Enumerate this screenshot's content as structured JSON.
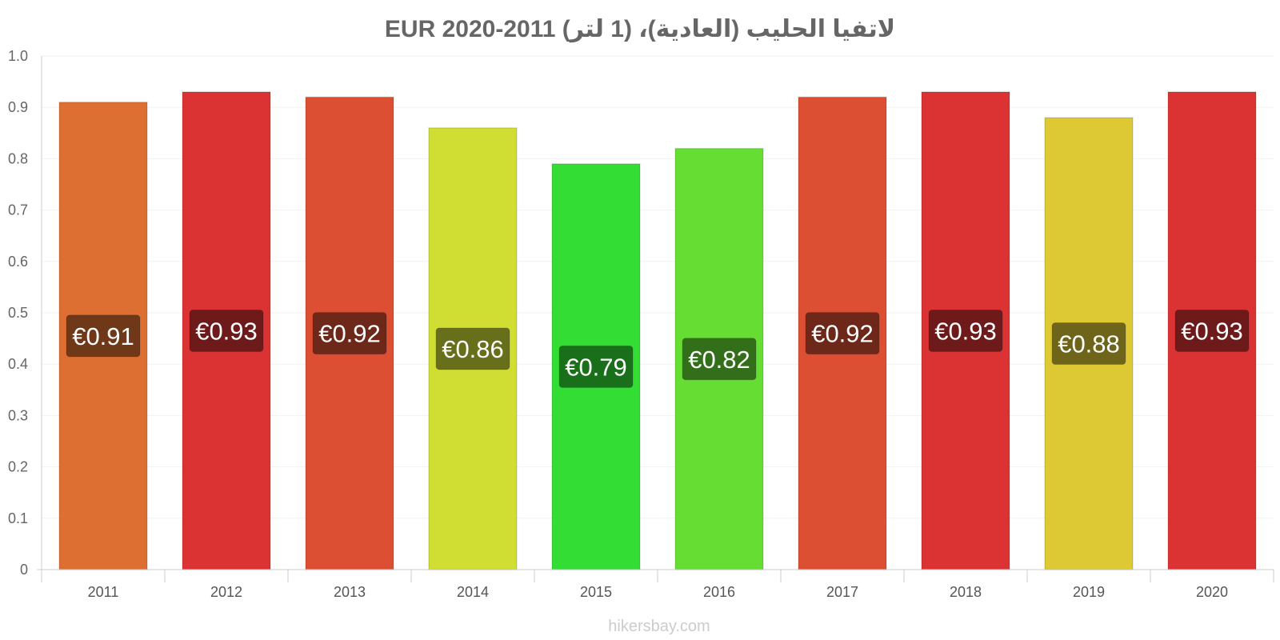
{
  "chart_data": {
    "type": "bar",
    "title": "لاتفيا الحليب (العادية)، (1 لتر) EUR 2020-2011",
    "xlabel": "",
    "ylabel": "",
    "ylim": [
      0,
      1.0
    ],
    "yticks": [
      "0",
      "0.1",
      "0.2",
      "0.3",
      "0.4",
      "0.5",
      "0.6",
      "0.7",
      "0.8",
      "0.9",
      "1.0"
    ],
    "categories": [
      "2011",
      "2012",
      "2013",
      "2014",
      "2015",
      "2016",
      "2017",
      "2018",
      "2019",
      "2020"
    ],
    "values": [
      0.91,
      0.93,
      0.92,
      0.86,
      0.79,
      0.82,
      0.92,
      0.93,
      0.88,
      0.93
    ],
    "data_labels": [
      "€0.91",
      "€0.93",
      "€0.92",
      "€0.86",
      "€0.79",
      "€0.82",
      "€0.92",
      "€0.93",
      "€0.88",
      "€0.93"
    ],
    "bar_colors": [
      "#dd6f33",
      "#db3333",
      "#dc4f33",
      "#d0dd33",
      "#33dd33",
      "#66dd33",
      "#dc4f33",
      "#db3333",
      "#ddc933",
      "#db3333"
    ],
    "label_bg_colors": [
      "#6f3819",
      "#6e1a1a",
      "#6e281a",
      "#686f1a",
      "#1a6f1a",
      "#336f1a",
      "#6e281a",
      "#6e1a1a",
      "#6f651a",
      "#6e1a1a"
    ],
    "grid": true,
    "legend": "none"
  },
  "footer": {
    "credit": "hikersbay.com"
  }
}
